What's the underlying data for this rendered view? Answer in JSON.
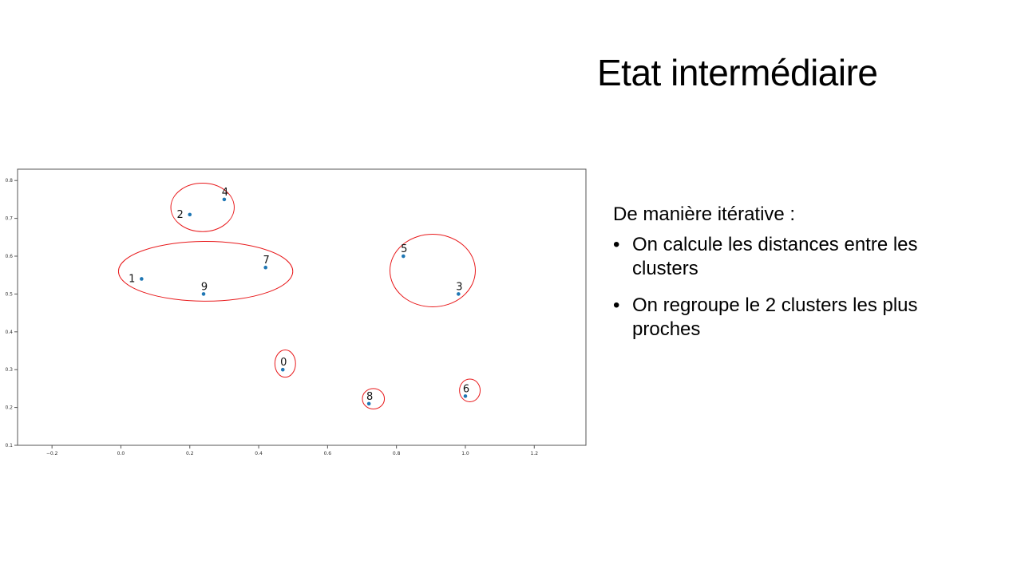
{
  "slide": {
    "title": "Etat intermédiaire",
    "intro": "De manière itérative :",
    "bullets": [
      "On calcule les distances entre les clusters",
      "On regroupe le 2 clusters les plus proches"
    ],
    "bullet_glyph": "•"
  },
  "chart_data": {
    "type": "scatter",
    "title": "",
    "xlabel": "",
    "ylabel": "",
    "xlim": [
      -0.3,
      1.35
    ],
    "ylim": [
      0.1,
      0.83
    ],
    "x_ticks": [
      -0.2,
      0.0,
      0.2,
      0.4,
      0.6,
      0.8,
      1.0,
      1.2
    ],
    "y_ticks": [
      0.1,
      0.2,
      0.3,
      0.4,
      0.5,
      0.6,
      0.7,
      0.8
    ],
    "grid": false,
    "point_color": "#1f77b4",
    "cluster_color": "#e8191b",
    "points": [
      {
        "label": "0",
        "x": 0.47,
        "y": 0.3
      },
      {
        "label": "1",
        "x": 0.06,
        "y": 0.54
      },
      {
        "label": "2",
        "x": 0.2,
        "y": 0.71
      },
      {
        "label": "3",
        "x": 0.98,
        "y": 0.5
      },
      {
        "label": "4",
        "x": 0.3,
        "y": 0.75
      },
      {
        "label": "5",
        "x": 0.82,
        "y": 0.6
      },
      {
        "label": "6",
        "x": 1.0,
        "y": 0.23
      },
      {
        "label": "7",
        "x": 0.42,
        "y": 0.57
      },
      {
        "label": "8",
        "x": 0.72,
        "y": 0.21
      },
      {
        "label": "9",
        "x": 0.24,
        "y": 0.5
      }
    ],
    "clusters": [
      {
        "members": [
          "2",
          "4"
        ],
        "cx": 0.237,
        "cy": 0.729,
        "rx": 0.092,
        "ry": 0.064
      },
      {
        "members": [
          "1",
          "7",
          "9"
        ],
        "cx": 0.246,
        "cy": 0.56,
        "rx": 0.253,
        "ry": 0.079
      },
      {
        "members": [
          "5",
          "3"
        ],
        "cx": 0.905,
        "cy": 0.562,
        "rx": 0.124,
        "ry": 0.096
      },
      {
        "members": [
          "0"
        ],
        "cx": 0.477,
        "cy": 0.316,
        "rx": 0.03,
        "ry": 0.036
      },
      {
        "members": [
          "8"
        ],
        "cx": 0.733,
        "cy": 0.223,
        "rx": 0.032,
        "ry": 0.027
      },
      {
        "members": [
          "6"
        ],
        "cx": 1.013,
        "cy": 0.245,
        "rx": 0.03,
        "ry": 0.03
      }
    ]
  }
}
